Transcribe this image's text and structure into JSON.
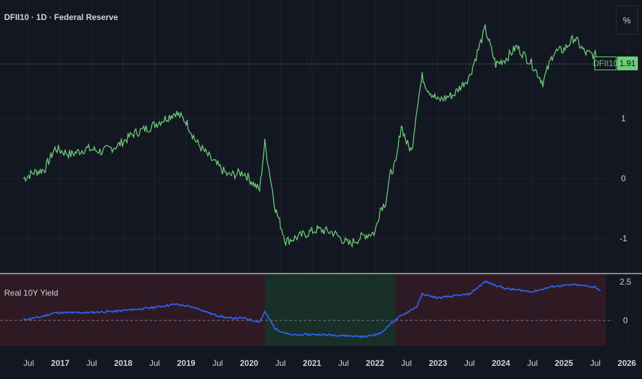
{
  "header": {
    "title": "DFII10 · 1D · Federal Reserve"
  },
  "scale_button": {
    "label": "%"
  },
  "last_value_tag": {
    "name": "DFII10",
    "value": "1.91"
  },
  "indicator": {
    "title": "Real 10Y Yield"
  },
  "colors": {
    "background": "#131722",
    "main_line": "#6fcc7a",
    "indicator_line": "#2f62f1",
    "zone_negative": "#1b3a2a",
    "zone_positive": "#3a1c24",
    "grid": "#1f2330"
  },
  "chart_data": [
    {
      "type": "line",
      "series": [
        {
          "name": "DFII10"
        }
      ],
      "x": [
        "2016-06",
        "2016-08",
        "2016-10",
        "2016-12",
        "2017-03",
        "2017-06",
        "2017-09",
        "2017-12",
        "2018-03",
        "2018-06",
        "2018-09",
        "2018-11",
        "2019-01",
        "2019-03",
        "2019-06",
        "2019-09",
        "2019-12",
        "2020-02",
        "2020-03",
        "2020-04",
        "2020-06",
        "2020-08",
        "2020-11",
        "2021-02",
        "2021-05",
        "2021-08",
        "2021-11",
        "2022-01",
        "2022-02",
        "2022-03",
        "2022-04",
        "2022-05",
        "2022-06",
        "2022-07",
        "2022-08",
        "2022-09",
        "2022-10",
        "2022-11",
        "2023-01",
        "2023-04",
        "2023-07",
        "2023-10",
        "2023-12",
        "2024-02",
        "2024-04",
        "2024-07",
        "2024-09",
        "2024-11",
        "2025-01",
        "2025-03",
        "2025-05",
        "2025-07",
        "2025-08"
      ],
      "y": [
        0.0,
        0.1,
        0.15,
        0.5,
        0.4,
        0.5,
        0.45,
        0.55,
        0.75,
        0.85,
        1.0,
        1.1,
        0.95,
        0.6,
        0.3,
        0.05,
        0.1,
        -0.1,
        -0.2,
        0.6,
        -0.5,
        -1.05,
        -0.95,
        -0.85,
        -0.9,
        -1.1,
        -0.95,
        -0.9,
        -0.5,
        -0.4,
        0.1,
        0.25,
        0.9,
        0.6,
        0.45,
        1.2,
        1.7,
        1.5,
        1.3,
        1.4,
        1.7,
        2.5,
        1.9,
        2.0,
        2.2,
        1.9,
        1.6,
        2.1,
        2.15,
        2.35,
        2.1,
        2.05,
        1.91
      ],
      "ylim": [
        -1.5,
        2.7
      ],
      "yticks": [
        "1",
        "0",
        "-1"
      ],
      "grid": true
    },
    {
      "type": "line",
      "series": [
        {
          "name": "Real 10Y Yield"
        }
      ],
      "x": [
        "2016-06",
        "2016-09",
        "2016-12",
        "2017-06",
        "2017-12",
        "2018-06",
        "2018-11",
        "2019-03",
        "2019-06",
        "2019-09",
        "2019-12",
        "2020-03",
        "2020-04",
        "2020-06",
        "2020-09",
        "2021-01",
        "2021-06",
        "2021-11",
        "2022-02",
        "2022-04",
        "2022-06",
        "2022-09",
        "2022-10",
        "2023-01",
        "2023-07",
        "2023-10",
        "2024-02",
        "2024-07",
        "2024-11",
        "2025-03",
        "2025-07",
        "2025-08"
      ],
      "y": [
        0.05,
        0.2,
        0.5,
        0.5,
        0.6,
        0.8,
        1.05,
        0.8,
        0.4,
        0.15,
        0.15,
        -0.1,
        0.55,
        -0.55,
        -0.95,
        -0.9,
        -0.95,
        -1.05,
        -0.85,
        -0.2,
        0.3,
        0.9,
        1.7,
        1.45,
        1.7,
        2.5,
        2.05,
        1.85,
        2.2,
        2.3,
        2.15,
        1.91
      ],
      "ylim": [
        -1.5,
        2.7
      ],
      "yticks": [
        "2.5",
        "0"
      ],
      "grid": false
    }
  ],
  "x_axis": {
    "tick_labels": [
      "Jul",
      "2017",
      "Jul",
      "2018",
      "Jul",
      "2019",
      "Jul",
      "2020",
      "Jul",
      "2021",
      "Jul",
      "2022",
      "Jul",
      "2023",
      "Jul",
      "2024",
      "Jul",
      "2025",
      "Jul",
      "2026"
    ]
  }
}
